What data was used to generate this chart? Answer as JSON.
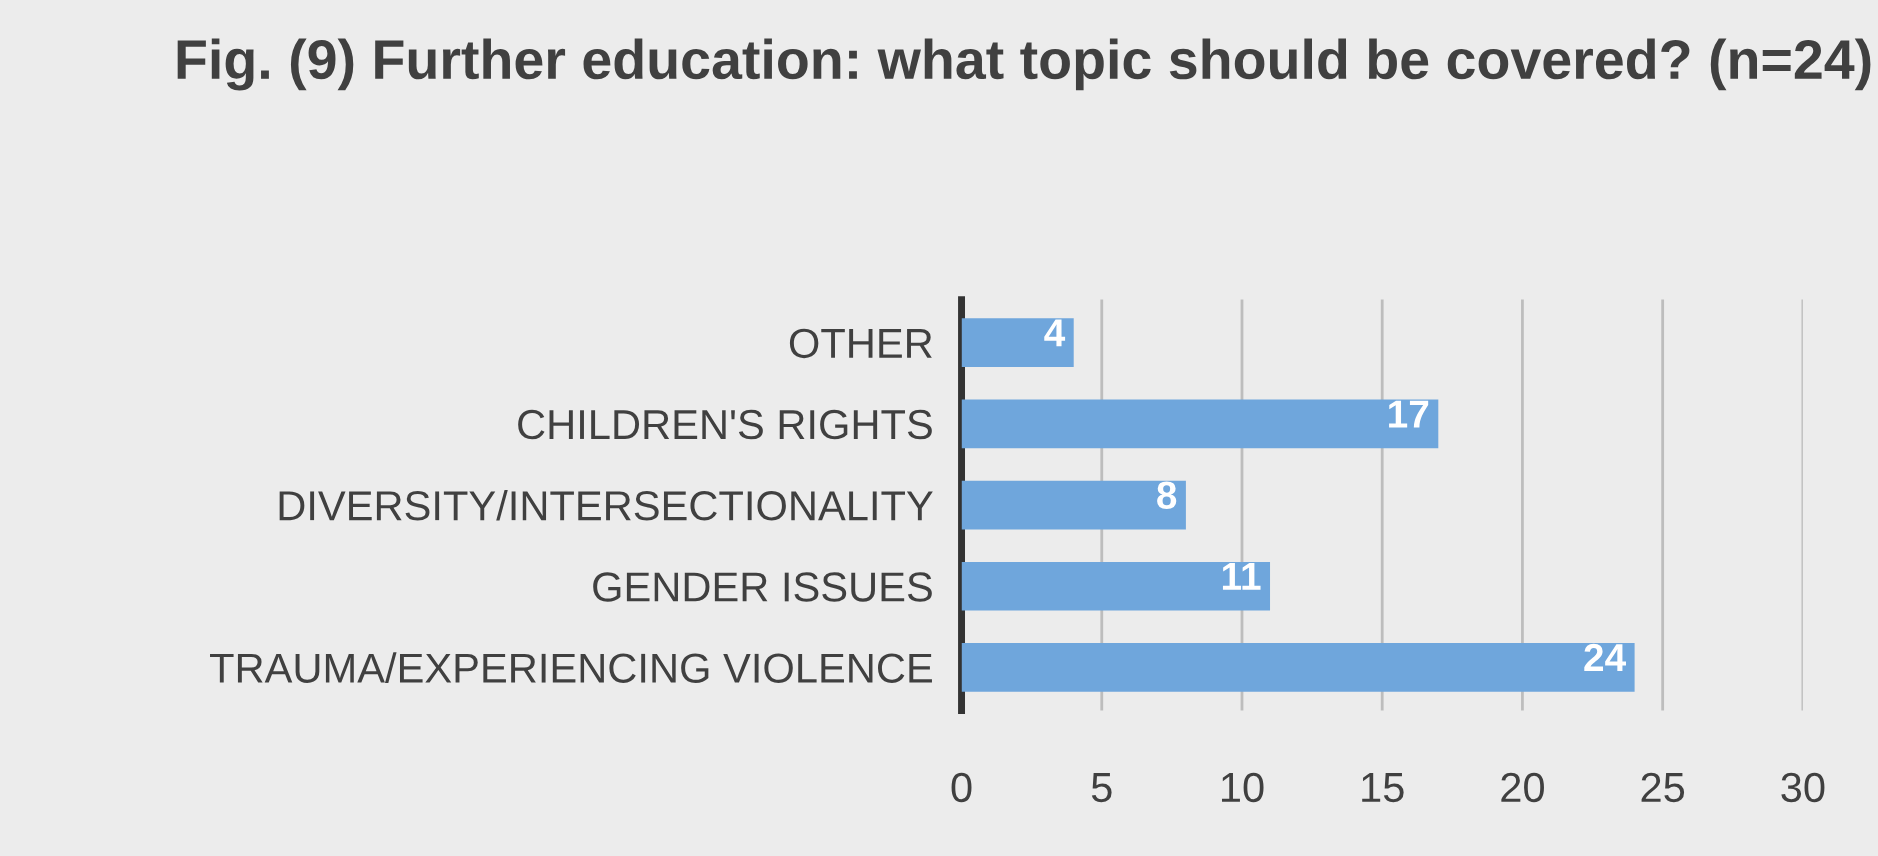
{
  "chart_data": {
    "type": "bar",
    "orientation": "horizontal",
    "title": "Fig. (9) Further education: what topic should be covered? (n=24)",
    "categories": [
      "OTHER",
      "CHILDREN'S RIGHTS",
      "DIVERSITY/INTERSECTIONALITY",
      "GENDER ISSUES",
      "TRAUMA/EXPERIENCING VIOLENCE"
    ],
    "values": [
      4,
      17,
      8,
      11,
      24
    ],
    "color": "#6fa6dc",
    "xlim": [
      0,
      30
    ],
    "xticks": [
      0,
      5,
      10,
      15,
      20,
      25,
      30
    ],
    "grid": "x",
    "data_labels": true
  }
}
